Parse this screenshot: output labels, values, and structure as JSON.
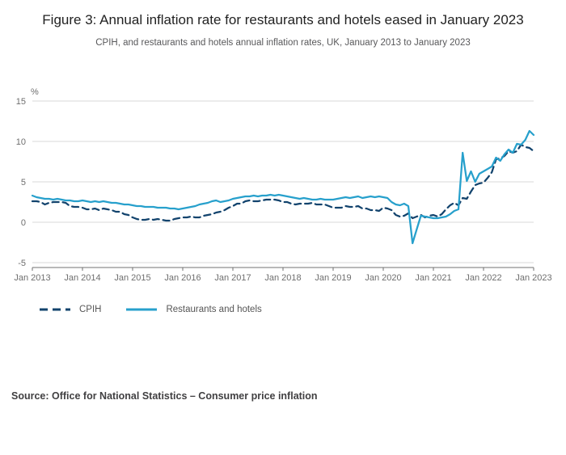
{
  "header": {
    "title": "Figure 3: Annual inflation rate for restaurants and hotels eased in January 2023",
    "subtitle": "CPIH, and restaurants and hotels annual inflation rates, UK, January 2013 to January 2023"
  },
  "legend": {
    "cpih": "CPIH",
    "restaurants": "Restaurants and hotels"
  },
  "source": {
    "text": "Source: Office for National Statistics – Consumer price inflation"
  },
  "colors": {
    "cpih": "#12436D",
    "restaurants": "#27A0CC",
    "gridline": "#d9d9d9",
    "axis": "#707071",
    "tick_text": "#6e6e6e"
  },
  "chart_data": {
    "type": "line",
    "title": "Figure 3: Annual inflation rate for restaurants and hotels eased in January 2023",
    "subtitle": "CPIH, and restaurants and hotels annual inflation rates, UK, January 2013 to January 2023",
    "unit_label": "%",
    "xlabel": "",
    "ylabel": "%",
    "ylim": [
      -5,
      15
    ],
    "y_ticks": [
      15,
      10,
      5,
      0,
      -5
    ],
    "x_tick_labels": [
      "Jan 2013",
      "Jan 2014",
      "Jan 2015",
      "Jan 2016",
      "Jan 2017",
      "Jan 2018",
      "Jan 2019",
      "Jan 2020",
      "Jan 2021",
      "Jan 2022",
      "Jan 2023"
    ],
    "x_frequency": "monthly",
    "x_range": "January 2013 to January 2023",
    "grid": "horizontal",
    "legend_position": "bottom-left",
    "series": [
      {
        "name": "CPIH",
        "style": "dashed",
        "color": "#12436D",
        "values": [
          2.6,
          2.6,
          2.5,
          2.2,
          2.4,
          2.5,
          2.5,
          2.5,
          2.4,
          2.0,
          1.9,
          1.9,
          1.8,
          1.6,
          1.6,
          1.7,
          1.5,
          1.7,
          1.6,
          1.5,
          1.3,
          1.3,
          1.0,
          0.9,
          0.6,
          0.4,
          0.3,
          0.3,
          0.4,
          0.3,
          0.4,
          0.3,
          0.2,
          0.2,
          0.4,
          0.5,
          0.6,
          0.6,
          0.7,
          0.6,
          0.6,
          0.8,
          0.9,
          1.0,
          1.2,
          1.3,
          1.5,
          1.8,
          2.0,
          2.3,
          2.3,
          2.6,
          2.7,
          2.6,
          2.6,
          2.7,
          2.8,
          2.8,
          2.8,
          2.7,
          2.5,
          2.5,
          2.3,
          2.2,
          2.3,
          2.3,
          2.3,
          2.4,
          2.2,
          2.2,
          2.2,
          2.0,
          1.8,
          1.8,
          1.8,
          2.0,
          1.9,
          1.9,
          2.0,
          1.7,
          1.7,
          1.5,
          1.5,
          1.4,
          1.8,
          1.7,
          1.5,
          0.9,
          0.7,
          0.8,
          1.1,
          0.5,
          0.7,
          0.9,
          0.6,
          0.8,
          0.9,
          0.7,
          1.0,
          1.6,
          2.1,
          2.4,
          2.1,
          3.0,
          2.9,
          3.8,
          4.6,
          4.8,
          4.9,
          5.5,
          6.2,
          7.8,
          7.9,
          8.2,
          8.8,
          8.6,
          8.8,
          9.6,
          9.3,
          9.2,
          8.8
        ]
      },
      {
        "name": "Restaurants and hotels",
        "style": "solid",
        "color": "#27A0CC",
        "values": [
          3.3,
          3.1,
          3.0,
          2.9,
          2.9,
          2.8,
          2.9,
          2.8,
          2.7,
          2.7,
          2.6,
          2.6,
          2.7,
          2.6,
          2.5,
          2.6,
          2.5,
          2.6,
          2.5,
          2.4,
          2.4,
          2.3,
          2.2,
          2.2,
          2.1,
          2.0,
          2.0,
          1.9,
          1.9,
          1.9,
          1.8,
          1.8,
          1.8,
          1.7,
          1.7,
          1.6,
          1.7,
          1.8,
          1.9,
          2.0,
          2.2,
          2.3,
          2.4,
          2.6,
          2.7,
          2.5,
          2.6,
          2.7,
          2.9,
          3.0,
          3.1,
          3.2,
          3.2,
          3.3,
          3.2,
          3.3,
          3.3,
          3.4,
          3.3,
          3.4,
          3.3,
          3.2,
          3.1,
          3.0,
          2.9,
          3.0,
          2.9,
          2.8,
          2.8,
          2.9,
          2.8,
          2.8,
          2.8,
          2.9,
          3.0,
          3.1,
          3.0,
          3.1,
          3.2,
          3.0,
          3.1,
          3.2,
          3.1,
          3.2,
          3.1,
          3.0,
          2.5,
          2.2,
          2.1,
          2.3,
          2.0,
          -2.6,
          -0.9,
          0.8,
          0.7,
          0.6,
          0.5,
          0.5,
          0.6,
          0.7,
          1.0,
          1.4,
          1.6,
          8.6,
          5.1,
          6.3,
          5.0,
          6.0,
          6.3,
          6.6,
          6.9,
          8.0,
          7.6,
          8.4,
          9.0,
          8.6,
          9.7,
          9.6,
          10.2,
          11.3,
          10.8
        ]
      }
    ]
  }
}
